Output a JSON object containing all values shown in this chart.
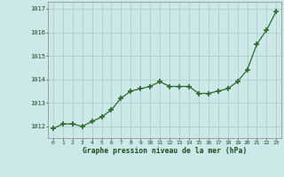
{
  "x": [
    0,
    1,
    2,
    3,
    4,
    5,
    6,
    7,
    8,
    9,
    10,
    11,
    12,
    13,
    14,
    15,
    16,
    17,
    18,
    19,
    20,
    21,
    22,
    23
  ],
  "y": [
    1011.9,
    1012.1,
    1012.1,
    1012.0,
    1012.2,
    1012.4,
    1012.7,
    1013.2,
    1013.5,
    1013.6,
    1013.7,
    1013.9,
    1013.7,
    1013.7,
    1013.7,
    1013.4,
    1013.4,
    1013.5,
    1013.6,
    1013.9,
    1014.4,
    1015.5,
    1016.1,
    1016.9
  ],
  "line_color": "#2d6a2d",
  "marker": "+",
  "marker_size": 4,
  "marker_lw": 1.2,
  "bg_color": "#cce8e8",
  "grid_color": "#aac8c8",
  "xlabel": "Graphe pression niveau de la mer (hPa)",
  "xlabel_color": "#1a4a1a",
  "tick_color": "#1a4a1a",
  "ylim": [
    1011.5,
    1017.3
  ],
  "yticks": [
    1012,
    1013,
    1014,
    1015,
    1016,
    1017
  ],
  "xlim": [
    -0.5,
    23.5
  ],
  "line_width": 0.9
}
